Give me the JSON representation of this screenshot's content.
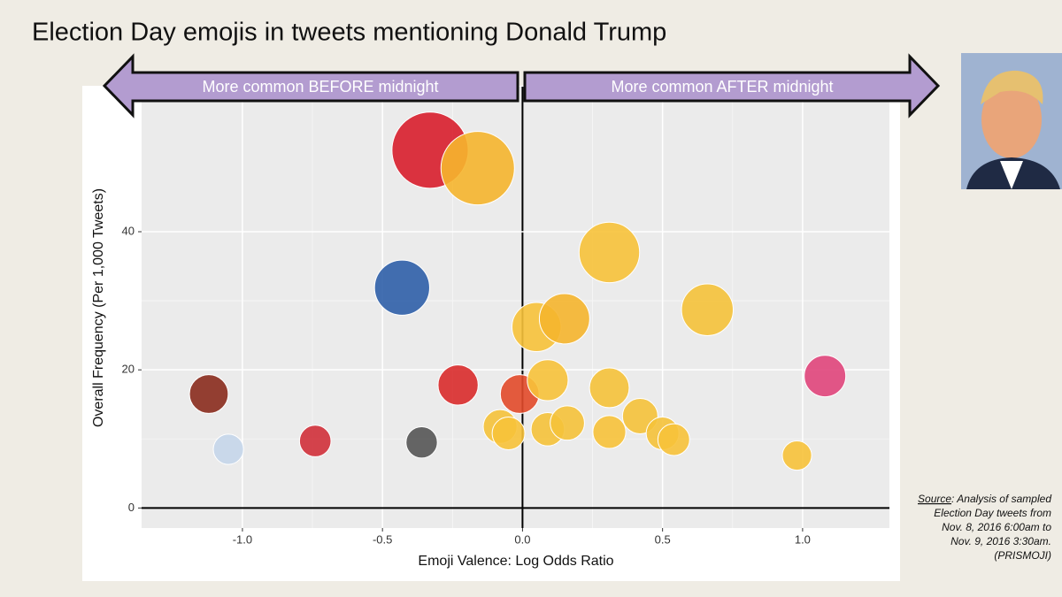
{
  "chart_data": {
    "type": "scatter",
    "title": "Election Day emojis in tweets mentioning Donald Trump",
    "arrow_left": "More common BEFORE midnight",
    "arrow_right": "More common AFTER midnight",
    "x_label": "Emoji Valence: Log Odds Ratio",
    "y_label": "Overall Frequency (Per 1,000 Tweets)",
    "x": [
      -0.33,
      -0.16,
      0.31,
      -0.43,
      0.66,
      0.05,
      0.15,
      1.08,
      -1.12,
      -0.23,
      -0.01,
      0.09,
      0.31,
      -1.05,
      -0.74,
      -0.36,
      -0.08,
      -0.05,
      0.09,
      0.16,
      0.31,
      0.42,
      0.5,
      0.54,
      0.98
    ],
    "values": [
      51.8,
      49.2,
      37,
      31.9,
      28.7,
      26.2,
      27.4,
      19.1,
      16.5,
      17.8,
      16.5,
      18.5,
      17.4,
      8.5,
      9.7,
      9.5,
      11.8,
      10.8,
      11.4,
      12.3,
      11,
      13.3,
      10.8,
      9.9,
      7.6
    ],
    "colors": [
      "#d81e2c",
      "#f5b52e",
      "#f7c23a",
      "#2f5fa8",
      "#f5c23a",
      "#f7c23a",
      "#f5b52e",
      "#e0457b",
      "#8a2b1d",
      "#d92b2b",
      "#e24a2a",
      "#f7c23a",
      "#f5c23a",
      "#c5d6ea",
      "#d0303a",
      "#555555",
      "#f5c23a",
      "#f7c23a",
      "#f5c23a",
      "#f5c23a",
      "#f7c23a",
      "#f5c23a",
      "#f5c23a",
      "#f7c23a",
      "#f7c23a"
    ],
    "xlim": [
      -1.36,
      1.31
    ],
    "ylim": [
      -2.9,
      61
    ],
    "xticks": [
      {
        "value": -1,
        "label": "-1.0"
      },
      {
        "value": -0.5,
        "label": "-0.5"
      },
      {
        "value": 0,
        "label": "0.0"
      },
      {
        "value": 0.5,
        "label": "0.5"
      },
      {
        "value": 1,
        "label": "1.0"
      }
    ],
    "yticks": [
      0,
      20,
      40
    ],
    "grid": true,
    "source_label": "Source",
    "source_lines": [
      ": Analysis of sampled",
      "Election Day tweets from",
      "Nov. 8, 2016 6:00am to",
      "Nov. 9, 2016 3:30am.",
      "(PRISMOJI)"
    ]
  }
}
